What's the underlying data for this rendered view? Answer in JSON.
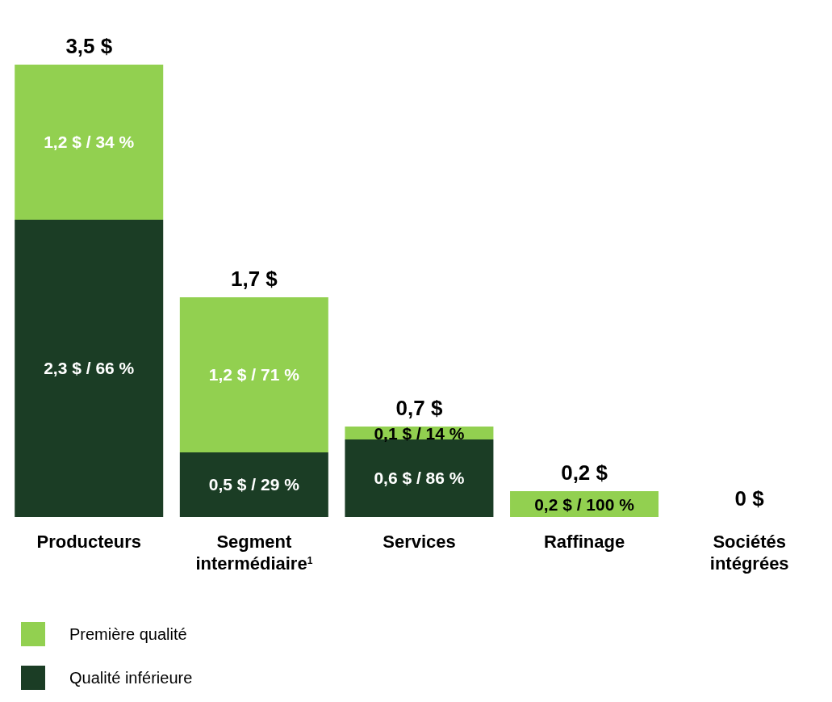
{
  "chart_data": {
    "type": "bar",
    "stacked": true,
    "categories": [
      "Producteurs",
      "Segment intermédiaire$^{1}$",
      "Services",
      "Raffinage",
      "Sociétés intégrées"
    ],
    "series": [
      {
        "name": "Qualité inférieure",
        "color": "#1b3d25",
        "values": [
          2.3,
          0.5,
          0.6,
          0,
          0
        ],
        "value_labels": [
          "2,3 $ / 66 %",
          "0,5 $ / 29 %",
          "0,6 $ / 86 %",
          null,
          null
        ]
      },
      {
        "name": "Première qualité",
        "color": "#92d050",
        "values": [
          1.2,
          1.2,
          0.1,
          0.2,
          0
        ],
        "value_labels": [
          "1,2 $ / 34 %",
          "1,2 $ / 71 %",
          "0,1 $ / 14 %",
          "0,2 $ / 100 %",
          null
        ]
      }
    ],
    "totals": [
      "3,5 $",
      "1,7 $",
      "0,7 $",
      "0,2 $",
      "0 $"
    ],
    "legend": "bottom left",
    "grid": false
  }
}
